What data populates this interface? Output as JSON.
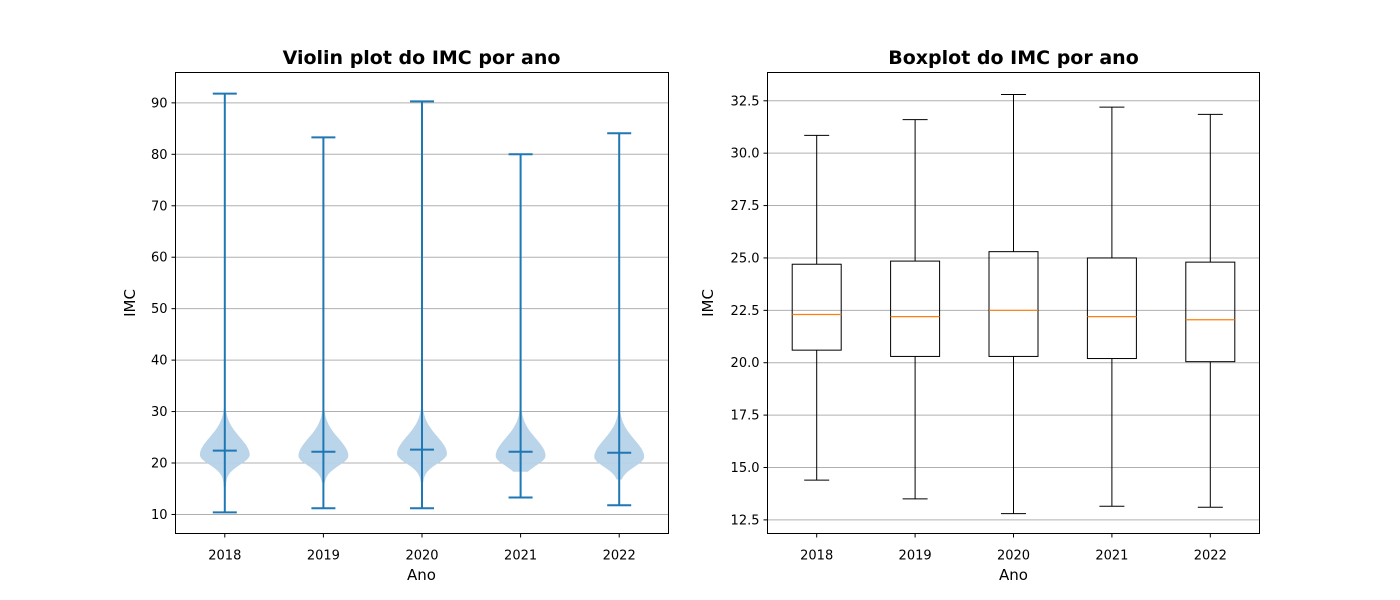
{
  "chart_data": [
    {
      "type": "violin",
      "title": "Violin plot do IMC por ano",
      "xlabel": "Ano",
      "ylabel": "IMC",
      "categories": [
        "2018",
        "2019",
        "2020",
        "2021",
        "2022"
      ],
      "yticks": [
        10,
        20,
        30,
        40,
        50,
        60,
        70,
        80,
        90
      ],
      "ylim": [
        6.3,
        95.9
      ],
      "grid": "y",
      "color": "#1f77b4",
      "fill_color": "#b6d2e8",
      "series": [
        {
          "category": "2018",
          "min": 10.4,
          "median": 22.4,
          "max": 91.8
        },
        {
          "category": "2019",
          "min": 11.2,
          "median": 22.2,
          "max": 83.3
        },
        {
          "category": "2020",
          "min": 11.2,
          "median": 22.6,
          "max": 90.3
        },
        {
          "category": "2021",
          "min": 13.3,
          "median": 22.2,
          "max": 80.0
        },
        {
          "category": "2022",
          "min": 11.8,
          "median": 22.0,
          "max": 84.1
        }
      ]
    },
    {
      "type": "box",
      "title": "Boxplot do IMC por ano",
      "xlabel": "Ano",
      "ylabel": "IMC",
      "categories": [
        "2018",
        "2019",
        "2020",
        "2021",
        "2022"
      ],
      "yticks": [
        "12.5",
        "15.0",
        "17.5",
        "20.0",
        "22.5",
        "25.0",
        "27.5",
        "30.0",
        "32.5"
      ],
      "ylim": [
        11.85,
        33.85
      ],
      "grid": "y",
      "box_color": "#000000",
      "median_color": "#ff7f0e",
      "series": [
        {
          "category": "2018",
          "whisker_low": 14.4,
          "q1": 20.6,
          "median": 22.3,
          "q3": 24.7,
          "whisker_high": 30.85
        },
        {
          "category": "2019",
          "whisker_low": 13.5,
          "q1": 20.3,
          "median": 22.2,
          "q3": 24.85,
          "whisker_high": 31.6
        },
        {
          "category": "2020",
          "whisker_low": 12.8,
          "q1": 20.3,
          "median": 22.5,
          "q3": 25.3,
          "whisker_high": 32.8
        },
        {
          "category": "2021",
          "whisker_low": 13.15,
          "q1": 20.2,
          "median": 22.2,
          "q3": 25.0,
          "whisker_high": 32.2
        },
        {
          "category": "2022",
          "whisker_low": 13.1,
          "q1": 20.05,
          "median": 22.05,
          "q3": 24.8,
          "whisker_high": 31.85
        }
      ]
    }
  ]
}
